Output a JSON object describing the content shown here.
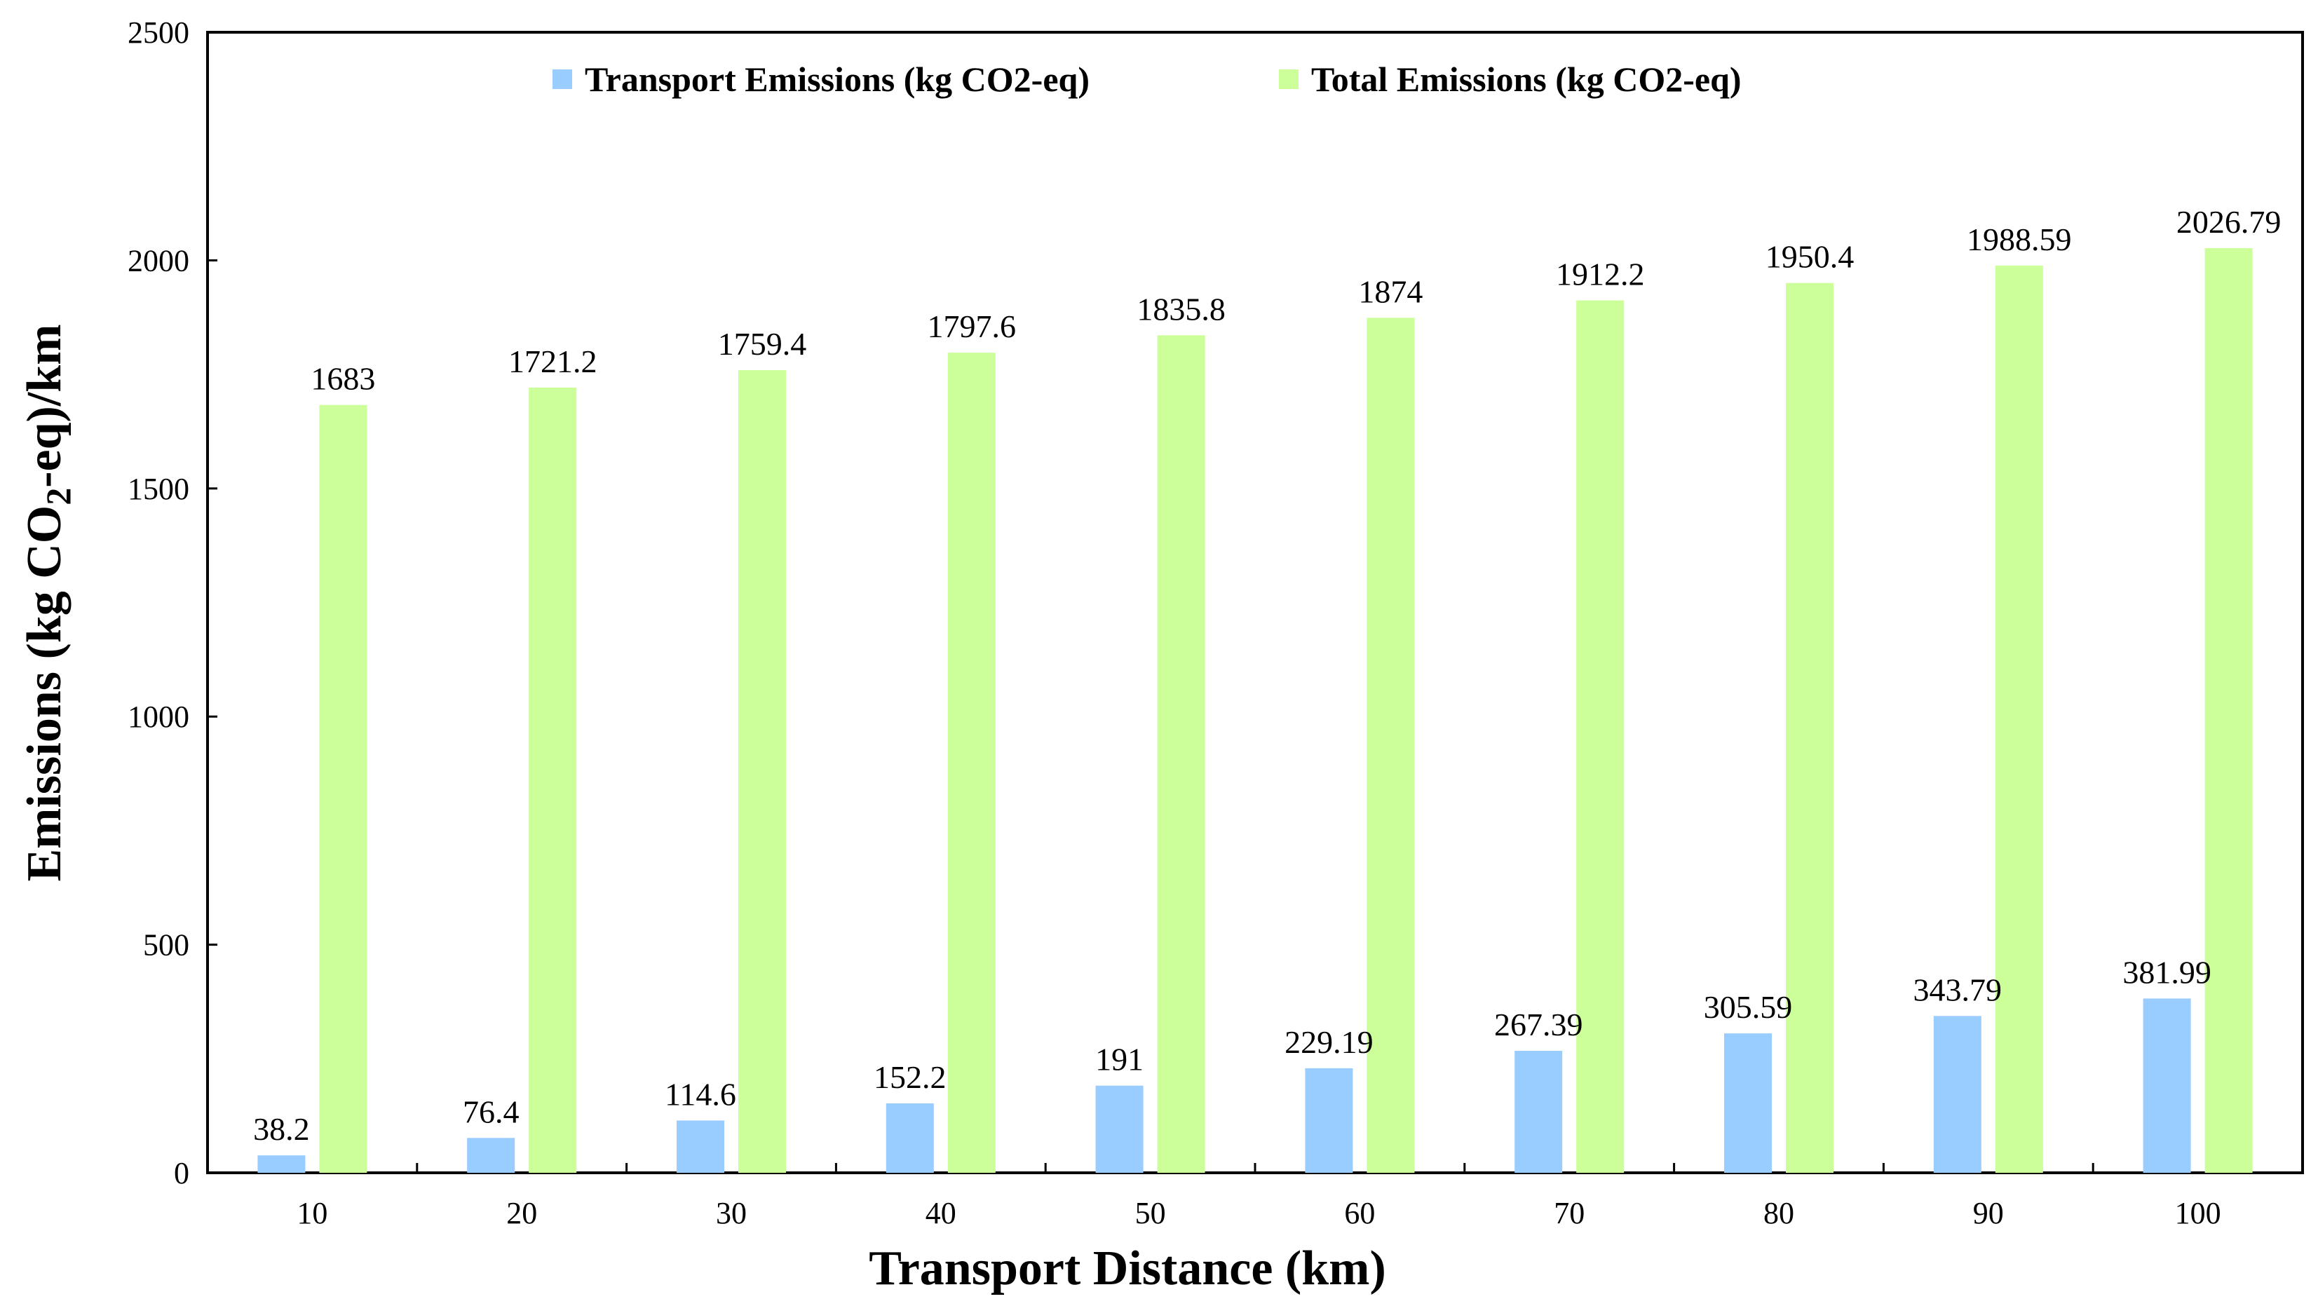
{
  "chart_data": {
    "type": "bar",
    "title": "",
    "xlabel": "Transport Distance (km)",
    "ylabel": "Emissions (kg CO2-eq)/km",
    "ylabel_parts": {
      "before": "Emissions (kg CO",
      "subscript": "2",
      "after": "-eq)/km"
    },
    "categories": [
      "10",
      "20",
      "30",
      "40",
      "50",
      "60",
      "70",
      "80",
      "90",
      "100"
    ],
    "ylim": [
      0,
      2500
    ],
    "yticks": [
      0,
      500,
      1000,
      1500,
      2000,
      2500
    ],
    "grid": false,
    "legend_position": "top-center",
    "series": [
      {
        "name": "Transport Emissions (kg CO2-eq)",
        "color": "#99ccff",
        "values": [
          38.2,
          76.4,
          114.6,
          152.2,
          191,
          229.19,
          267.39,
          305.59,
          343.79,
          381.99
        ],
        "labels": [
          "38.2",
          "76.4",
          "114.6",
          "152.2",
          "191",
          "229.19",
          "267.39",
          "305.59",
          "343.79",
          "381.99"
        ]
      },
      {
        "name": "Total Emissions (kg CO2-eq)",
        "color": "#ccff99",
        "values": [
          1683,
          1721.2,
          1759.4,
          1797.6,
          1835.8,
          1874,
          1912.2,
          1950.4,
          1988.59,
          2026.79
        ],
        "labels": [
          "1683",
          "1721.2",
          "1759.4",
          "1797.6",
          "1835.8",
          "1874",
          "1912.2",
          "1950.4",
          "1988.59",
          "2026.79"
        ]
      }
    ]
  }
}
